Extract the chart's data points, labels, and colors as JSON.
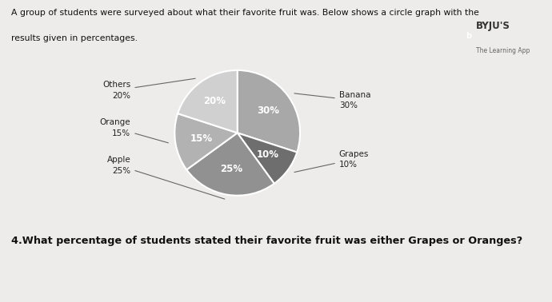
{
  "title_line1": "A group of students were surveyed about what their favorite fruit was. Below shows a circle graph with the",
  "title_line2": "results given in percentages.",
  "question": "4.What percentage of students stated their favorite fruit was either Grapes or Oranges?",
  "slices": [
    {
      "label": "Banana",
      "pct": 30,
      "color": "#a8a8a8"
    },
    {
      "label": "Grapes",
      "pct": 10,
      "color": "#6e6e6e"
    },
    {
      "label": "Apple",
      "pct": 25,
      "color": "#919191"
    },
    {
      "label": "Orange",
      "pct": 15,
      "color": "#b2b2b2"
    },
    {
      "label": "Others",
      "pct": 20,
      "color": "#d0d0d0"
    }
  ],
  "byju_text": "BYJU'S",
  "byju_sub": "The Learning App",
  "background_color": "#edecea"
}
